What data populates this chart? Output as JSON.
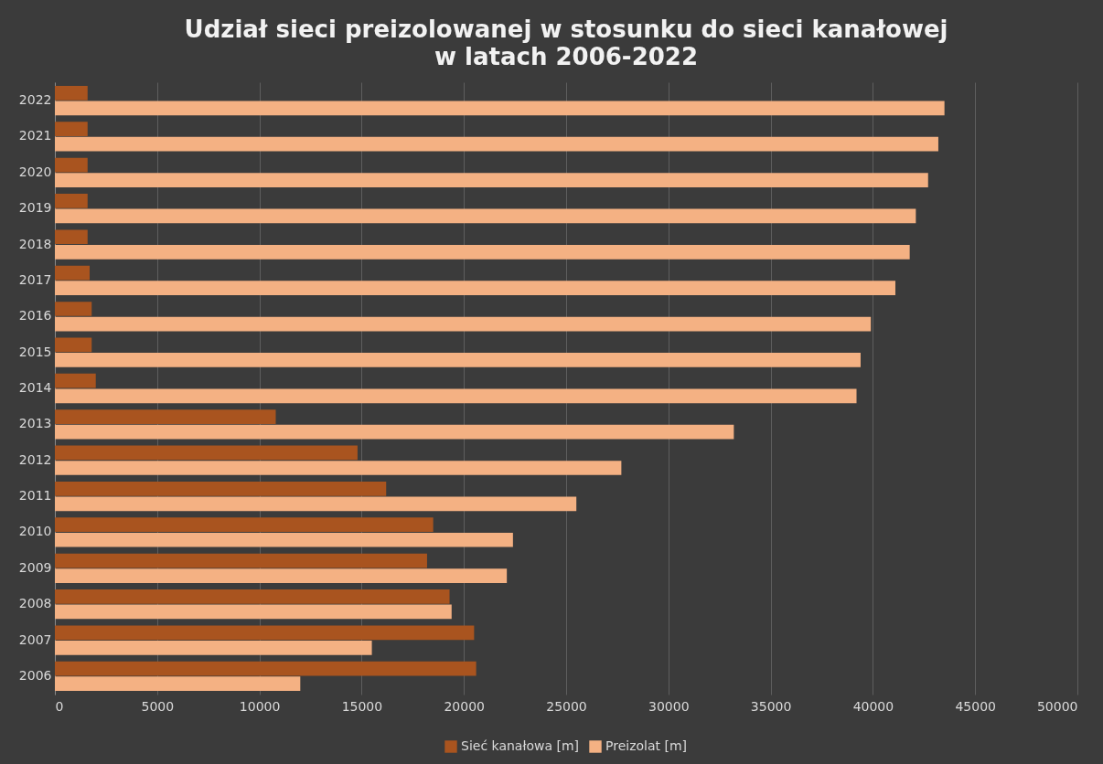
{
  "chart_data": {
    "type": "bar",
    "orientation": "horizontal",
    "title": "Udział sieci preizolowanej w stosunku do sieci kanałowej\nw latach 2006-2022",
    "categories": [
      "2022",
      "2021",
      "2020",
      "2019",
      "2018",
      "2017",
      "2016",
      "2015",
      "2014",
      "2013",
      "2012",
      "2011",
      "2010",
      "2009",
      "2008",
      "2007",
      "2006"
    ],
    "series": [
      {
        "name": "Sieć kanałowa [m]",
        "color": "#a9541f",
        "values": [
          1600,
          1600,
          1600,
          1600,
          1600,
          1700,
          1800,
          1800,
          2000,
          10800,
          14800,
          16200,
          18500,
          18200,
          19300,
          20500,
          20600
        ]
      },
      {
        "name": "Preizolat [m]",
        "color": "#f4b183",
        "values": [
          43500,
          43200,
          42700,
          42100,
          41800,
          41100,
          39900,
          39400,
          39200,
          33200,
          27700,
          25500,
          22400,
          22100,
          19400,
          15500,
          12000
        ]
      }
    ],
    "xlim": [
      0,
      50000
    ],
    "xticks": [
      0,
      5000,
      10000,
      15000,
      20000,
      25000,
      30000,
      35000,
      40000,
      45000,
      50000
    ],
    "grid": "x",
    "legend": "bottom"
  }
}
